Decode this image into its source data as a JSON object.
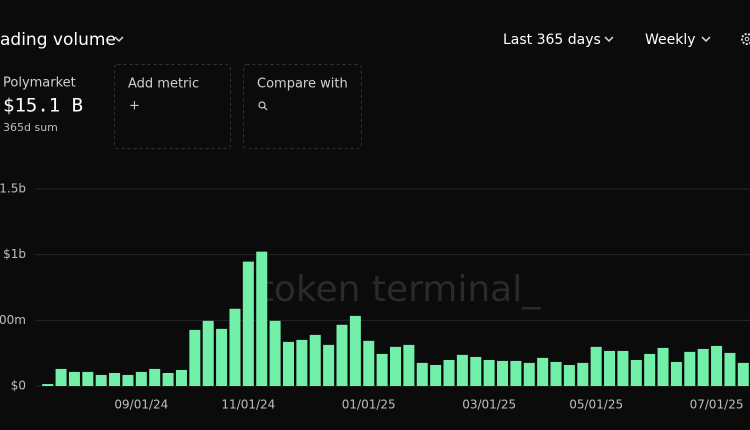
{
  "header": {
    "title": "ading volume",
    "range": "Last 365 days",
    "interval": "Weekly"
  },
  "cards": [
    {
      "title": "Polymarket",
      "value": "$15.1 B",
      "note": "365d sum"
    },
    {
      "title": "Add metric",
      "icon": "+"
    },
    {
      "title": "Compare with"
    }
  ],
  "watermark": "token terminal_",
  "chart_data": {
    "type": "bar",
    "color": "#72f0a9",
    "grid": true,
    "ylim": [
      0,
      1500
    ],
    "yticks": [
      {
        "value": 0,
        "label": "$0"
      },
      {
        "value": 500,
        "label": "00m"
      },
      {
        "value": 1000,
        "label": "$1b"
      },
      {
        "value": 1500,
        "label": "$1.5b"
      }
    ],
    "categories": [
      null,
      null,
      null,
      null,
      null,
      null,
      null,
      "09/01/24",
      null,
      null,
      null,
      null,
      null,
      null,
      null,
      "11/01/24",
      null,
      null,
      null,
      null,
      null,
      null,
      null,
      null,
      "01/01/25",
      null,
      null,
      null,
      null,
      null,
      null,
      null,
      null,
      "03/01/25",
      null,
      null,
      null,
      null,
      null,
      null,
      null,
      "05/01/25",
      null,
      null,
      null,
      null,
      null,
      null,
      null,
      null,
      "07/01/25",
      null,
      null
    ],
    "values": [
      15,
      130,
      107,
      107,
      84,
      99,
      84,
      107,
      130,
      99,
      122,
      427,
      496,
      435,
      588,
      947,
      1023,
      496,
      336,
      351,
      389,
      313,
      466,
      534,
      344,
      244,
      298,
      313,
      176,
      160,
      198,
      237,
      221,
      198,
      191,
      191,
      176,
      214,
      183,
      160,
      176,
      298,
      267,
      267,
      198,
      244,
      290,
      183,
      260,
      282,
      305,
      252,
      176
    ]
  }
}
